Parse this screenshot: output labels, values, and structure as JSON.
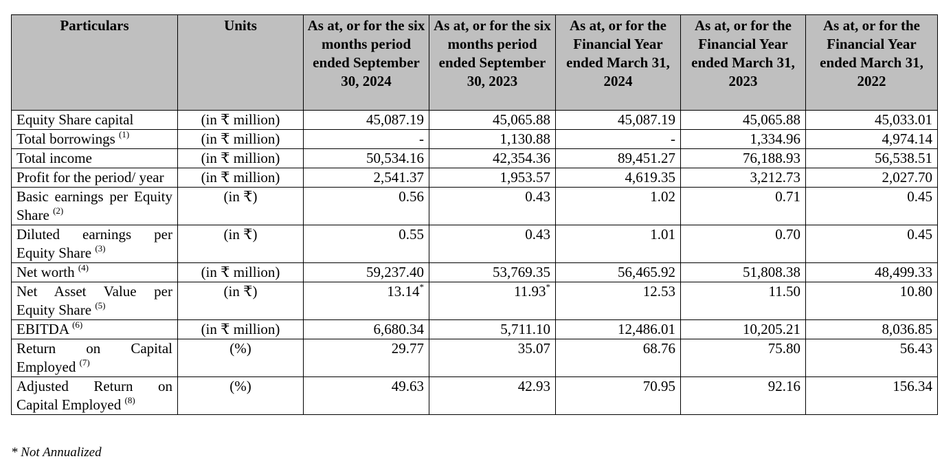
{
  "table": {
    "headers": [
      "Particulars",
      "Units",
      "As at, or for the six months period ended September 30, 2024",
      "As at, or for the six months period ended September 30, 2023",
      "As at, or for the Financial Year ended March 31, 2024",
      "As at, or for the Financial Year ended March 31, 2023",
      "As at, or for the Financial Year ended March 31, 2022"
    ],
    "rows": [
      {
        "particular": "Equity Share capital",
        "note": "",
        "unit": "(in ₹ million)",
        "values": [
          "45,087.19",
          "45,065.88",
          "45,087.19",
          "45,065.88",
          "45,033.01"
        ],
        "marks": [
          "",
          "",
          "",
          "",
          ""
        ]
      },
      {
        "particular": "Total borrowings",
        "note": "(1)",
        "unit": "(in ₹ million)",
        "values": [
          "-",
          "1,130.88",
          "-",
          "1,334.96",
          "4,974.14"
        ],
        "marks": [
          "",
          "",
          "",
          "",
          ""
        ]
      },
      {
        "particular": "Total income",
        "note": "",
        "unit": "(in ₹ million)",
        "values": [
          "50,534.16",
          "42,354.36",
          "89,451.27",
          "76,188.93",
          "56,538.51"
        ],
        "marks": [
          "",
          "",
          "",
          "",
          ""
        ]
      },
      {
        "particular": "Profit for the period/ year",
        "note": "",
        "unit": "(in ₹ million)",
        "values": [
          "2,541.37",
          "1,953.57",
          "4,619.35",
          "3,212.73",
          "2,027.70"
        ],
        "marks": [
          "",
          "",
          "",
          "",
          ""
        ]
      },
      {
        "particular": "Basic earnings per Equity Share",
        "note": "(2)",
        "unit": "(in ₹)",
        "values": [
          "0.56",
          "0.43",
          "1.02",
          "0.71",
          "0.45"
        ],
        "marks": [
          "",
          "",
          "",
          "",
          ""
        ]
      },
      {
        "particular": "Diluted earnings per Equity Share",
        "note": "(3)",
        "unit": "(in ₹)",
        "values": [
          "0.55",
          "0.43",
          "1.01",
          "0.70",
          "0.45"
        ],
        "marks": [
          "",
          "",
          "",
          "",
          ""
        ]
      },
      {
        "particular": "Net worth",
        "note": "(4)",
        "unit": "(in ₹ million)",
        "values": [
          "59,237.40",
          "53,769.35",
          "56,465.92",
          "51,808.38",
          "48,499.33"
        ],
        "marks": [
          "",
          "",
          "",
          "",
          ""
        ]
      },
      {
        "particular": "Net Asset Value per Equity Share",
        "note": "(5)",
        "unit": "(in ₹)",
        "values": [
          "13.14",
          "11.93",
          "12.53",
          "11.50",
          "10.80"
        ],
        "marks": [
          "*",
          "*",
          "",
          "",
          ""
        ]
      },
      {
        "particular": "EBITDA",
        "note": "(6)",
        "unit": "(in ₹ million)",
        "values": [
          "6,680.34",
          "5,711.10",
          "12,486.01",
          "10,205.21",
          "8,036.85"
        ],
        "marks": [
          "",
          "",
          "",
          "",
          ""
        ]
      },
      {
        "particular": "Return on Capital Employed",
        "note": "(7)",
        "unit": "(%)",
        "values": [
          "29.77",
          "35.07",
          "68.76",
          "75.80",
          "56.43"
        ],
        "marks": [
          "",
          "",
          "",
          "",
          ""
        ]
      },
      {
        "particular": "Adjusted Return on Capital Employed",
        "note": "(8)",
        "unit": "(%)",
        "values": [
          "49.63",
          "42.93",
          "70.95",
          "92.16",
          "156.34"
        ],
        "marks": [
          "",
          "",
          "",
          "",
          ""
        ]
      }
    ]
  },
  "footnote": "* Not Annualized"
}
